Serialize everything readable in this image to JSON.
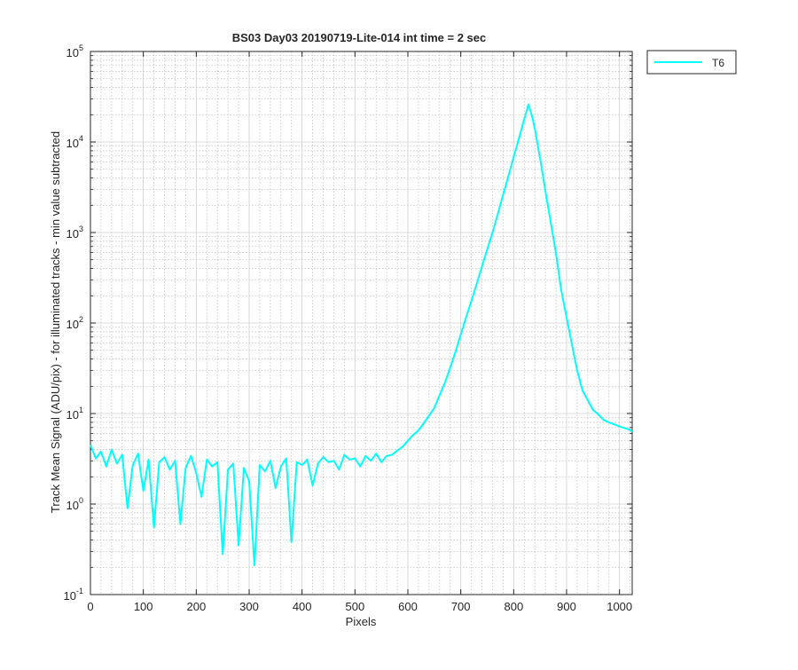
{
  "chart_data": {
    "type": "line",
    "title": "BS03 Day03 20190719-Lite-014 int time = 2 sec",
    "xlabel": "Pixels",
    "ylabel": "Track Mean Signal (ADU/pix) - for illuminated tracks - min value subtracted",
    "xlim": [
      0,
      1024
    ],
    "ylim": [
      0.1,
      100000
    ],
    "yscale": "log",
    "grid": true,
    "minor_grid": true,
    "legend_position": "outside-top-right",
    "x_ticks": [
      0,
      100,
      200,
      300,
      400,
      500,
      600,
      700,
      800,
      900,
      1000
    ],
    "y_ticks": [
      {
        "value": 0.1,
        "base": "10",
        "exp": "-1"
      },
      {
        "value": 1,
        "base": "10",
        "exp": "0"
      },
      {
        "value": 10,
        "base": "10",
        "exp": "1"
      },
      {
        "value": 100,
        "base": "10",
        "exp": "2"
      },
      {
        "value": 1000,
        "base": "10",
        "exp": "3"
      },
      {
        "value": 10000,
        "base": "10",
        "exp": "4"
      },
      {
        "value": 100000,
        "base": "10",
        "exp": "5"
      }
    ],
    "series": [
      {
        "name": "T6",
        "color": "#00FFFF",
        "x": [
          0,
          10,
          20,
          30,
          40,
          50,
          60,
          70,
          80,
          90,
          100,
          110,
          120,
          130,
          140,
          150,
          160,
          170,
          180,
          190,
          200,
          210,
          220,
          230,
          240,
          250,
          260,
          270,
          280,
          290,
          300,
          310,
          320,
          330,
          340,
          350,
          360,
          370,
          380,
          390,
          400,
          410,
          420,
          430,
          440,
          450,
          460,
          470,
          480,
          490,
          500,
          510,
          520,
          530,
          540,
          550,
          560,
          570,
          580,
          590,
          600,
          610,
          620,
          630,
          640,
          650,
          660,
          670,
          680,
          690,
          700,
          710,
          720,
          730,
          740,
          750,
          760,
          770,
          780,
          790,
          800,
          810,
          820,
          828,
          835,
          840,
          850,
          860,
          870,
          880,
          890,
          900,
          910,
          920,
          930,
          940,
          950,
          960,
          970,
          980,
          990,
          1000,
          1010,
          1020,
          1024
        ],
        "y": [
          4.5,
          3.2,
          3.8,
          2.6,
          4.0,
          2.8,
          3.5,
          0.9,
          2.7,
          3.6,
          1.4,
          3.1,
          0.55,
          2.9,
          3.3,
          2.4,
          3.0,
          0.6,
          2.5,
          3.4,
          2.2,
          1.2,
          3.1,
          2.6,
          2.9,
          0.28,
          2.4,
          2.8,
          0.35,
          2.5,
          1.8,
          0.21,
          2.7,
          2.3,
          3.0,
          1.5,
          2.6,
          3.2,
          0.38,
          2.9,
          2.7,
          3.1,
          1.6,
          2.8,
          3.3,
          2.9,
          3.0,
          2.4,
          3.5,
          3.1,
          3.2,
          2.6,
          3.4,
          3.0,
          3.6,
          2.9,
          3.4,
          3.5,
          3.9,
          4.3,
          5.0,
          5.8,
          6.5,
          7.8,
          9.5,
          11.5,
          16,
          22,
          32,
          48,
          75,
          115,
          175,
          270,
          420,
          650,
          1000,
          1600,
          2600,
          4200,
          6800,
          11000,
          18000,
          26000,
          19000,
          14000,
          6500,
          2900,
          1300,
          580,
          230,
          115,
          58,
          30,
          18,
          14,
          11,
          9.8,
          8.5,
          8.0,
          7.6,
          7.2,
          6.9,
          6.6,
          6.3
        ]
      }
    ]
  }
}
